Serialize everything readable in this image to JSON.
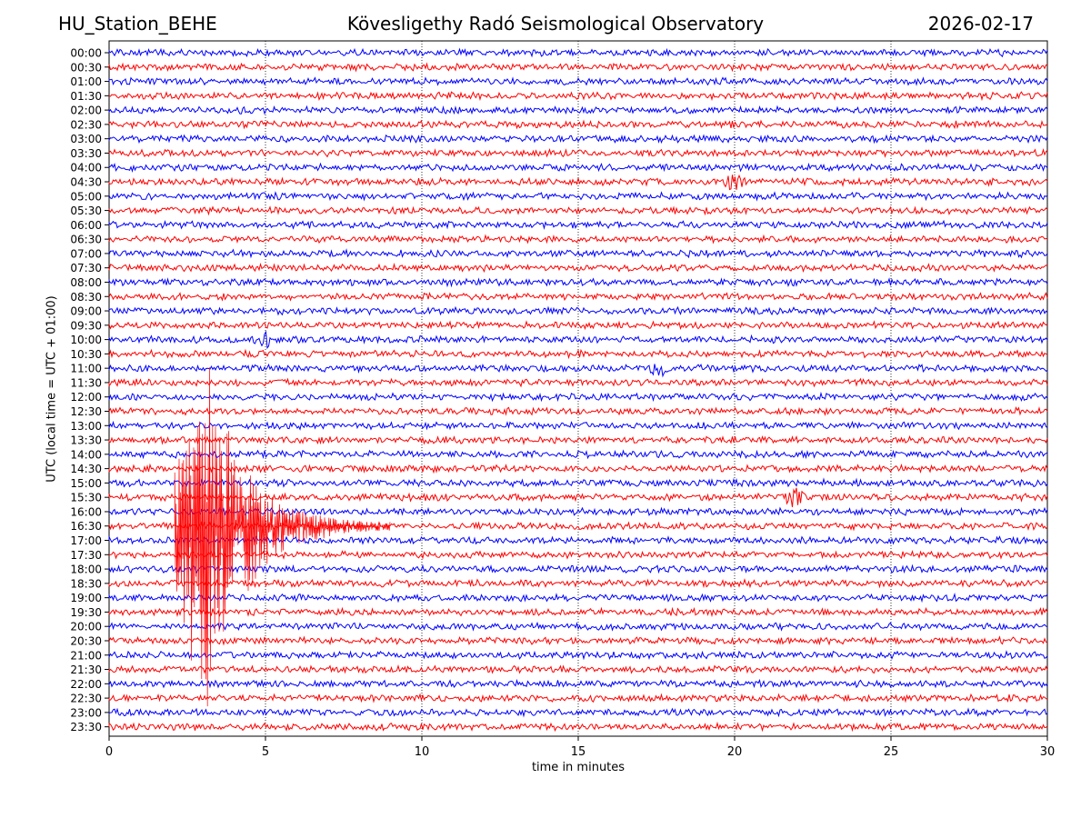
{
  "header": {
    "station": "HU_Station_BEHE",
    "observatory": "Kövesligethy Radó Seismological Observatory",
    "date": "2026-02-17"
  },
  "chart_data": {
    "type": "line",
    "title": "Kövesligethy Radó Seismological Observatory",
    "xlabel": "time in minutes",
    "ylabel": "UTC (local time = UTC + 01:00)",
    "xlim": [
      0,
      30
    ],
    "x_ticks": [
      0,
      5,
      10,
      15,
      20,
      25,
      30
    ],
    "grid": "vertical dotted lines at 5-minute intervals",
    "row_labels": [
      "00:00",
      "00:30",
      "01:00",
      "01:30",
      "02:00",
      "02:30",
      "03:00",
      "03:30",
      "04:00",
      "04:30",
      "05:00",
      "05:30",
      "06:00",
      "06:30",
      "07:00",
      "07:30",
      "08:00",
      "08:30",
      "09:00",
      "09:30",
      "10:00",
      "10:30",
      "11:00",
      "11:30",
      "12:00",
      "12:30",
      "13:00",
      "13:30",
      "14:00",
      "14:30",
      "15:00",
      "15:30",
      "16:00",
      "16:30",
      "17:00",
      "17:30",
      "18:00",
      "18:30",
      "19:00",
      "19:30",
      "20:00",
      "20:30",
      "21:00",
      "21:30",
      "22:00",
      "22:30",
      "23:00",
      "23:30"
    ],
    "trace_colors": [
      "#0000ff",
      "#ff0000"
    ],
    "events": [
      {
        "row": "16:30",
        "start_min": 2.1,
        "peak_min": 3.2,
        "end_min": 9.0,
        "color": "#ff0000"
      },
      {
        "row": "11:00",
        "minute": 17.6,
        "color": "#0000ff"
      },
      {
        "row": "15:30",
        "minute": 21.9,
        "color": "#ff0000"
      },
      {
        "row": "10:00",
        "minute": 5.0,
        "color": "#0000ff"
      },
      {
        "row": "04:30",
        "minute": 20.0,
        "color": "#ff0000"
      }
    ]
  }
}
